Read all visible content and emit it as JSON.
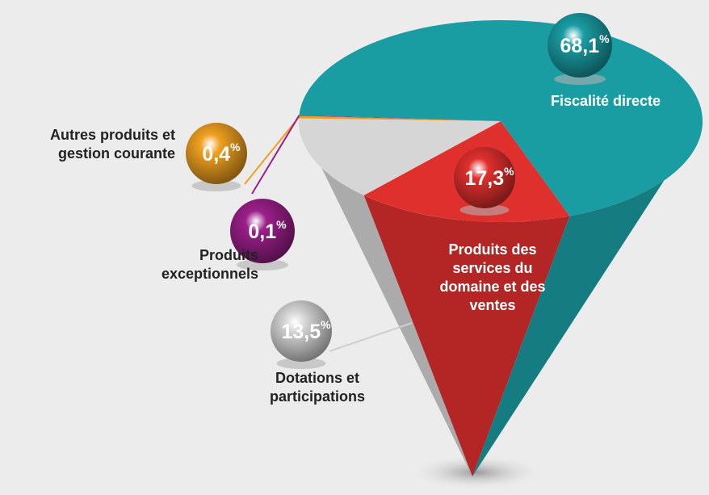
{
  "chart_data": {
    "type": "pie",
    "categories": [
      "Produits des services du domaine et des ventes",
      "Dotations et participations",
      "Autres produits et gestion courante",
      "Produits exceptionnels",
      "Fiscalité directe"
    ],
    "values": [
      17.3,
      13.5,
      0.4,
      0.1,
      68.1
    ],
    "value_labels": [
      "17,3%",
      "13,5%",
      "0,4%",
      "0,1%",
      "68,1%"
    ],
    "colors": [
      "#e0302e",
      "#d6d6d6",
      "#f0a020",
      "#9b1f8a",
      "#1a9ca3"
    ]
  }
}
